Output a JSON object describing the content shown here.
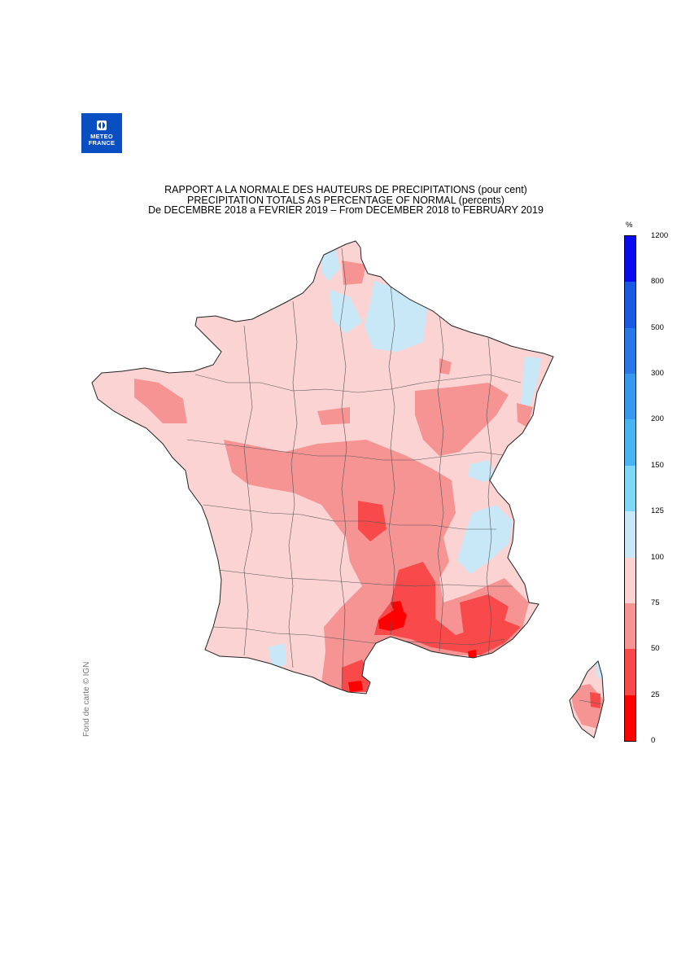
{
  "logo": {
    "line1": "METEO",
    "line2": "FRANCE"
  },
  "title": {
    "line1": "RAPPORT A LA NORMALE DES HAUTEURS DE PRECIPITATIONS (pour cent)",
    "line2": "PRECIPITATION TOTALS AS PERCENTAGE OF NORMAL (percents)",
    "line3": "De DECEMBRE 2018 a FEVRIER 2019 – From DECEMBER 2018 to FEBRUARY 2019"
  },
  "credit": "Fond de carte © IGN",
  "legend": {
    "unit": "%",
    "ticks": [
      "0",
      "25",
      "50",
      "75",
      "100",
      "125",
      "150",
      "200",
      "300",
      "500",
      "800",
      "1200"
    ],
    "classes": [
      {
        "range": "0-25",
        "color": "#ff0000"
      },
      {
        "range": "25-50",
        "color": "#f84a4a"
      },
      {
        "range": "50-75",
        "color": "#f69494"
      },
      {
        "range": "75-100",
        "color": "#fcd3d3"
      },
      {
        "range": "100-125",
        "color": "#c8e8f8"
      },
      {
        "range": "125-150",
        "color": "#80d8f8"
      },
      {
        "range": "150-200",
        "color": "#48b4f2"
      },
      {
        "range": "200-300",
        "color": "#3898ee"
      },
      {
        "range": "300-500",
        "color": "#2878e8"
      },
      {
        "range": "500-800",
        "color": "#1a5ae2"
      },
      {
        "range": "800-1200",
        "color": "#0a0af0"
      }
    ]
  },
  "map": {
    "region": "France",
    "land_background": "75-100",
    "areas": [
      {
        "name": "Hauts-de-France plateau",
        "class": "100-125"
      },
      {
        "name": "Flanders coast",
        "class": "100-125"
      },
      {
        "name": "Alsace Rhine corridor",
        "class": "100-125"
      },
      {
        "name": "Savoie / northern Alps",
        "class": "100-125"
      },
      {
        "name": "Massif Central",
        "class": "50-75"
      },
      {
        "name": "Rhone valley",
        "class": "50-75"
      },
      {
        "name": "Provence / Cote d'Azur",
        "class": "25-50"
      },
      {
        "name": "Languedoc coast",
        "class": "25-50"
      },
      {
        "name": "Montpellier / Nimes",
        "class": "0-25"
      },
      {
        "name": "Roussillon",
        "class": "0-25"
      },
      {
        "name": "Corsica",
        "class": "50-75"
      }
    ]
  }
}
